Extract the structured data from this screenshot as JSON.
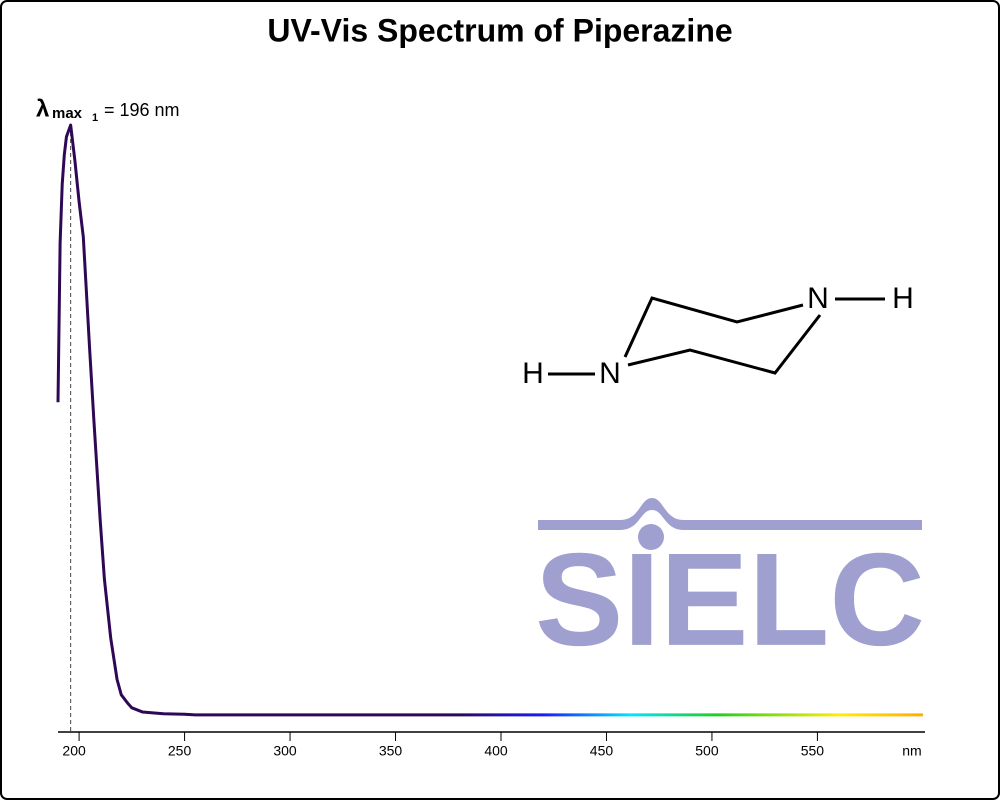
{
  "chart_data": {
    "type": "line",
    "title": "UV-Vis Spectrum of Piperazine",
    "x": [
      190,
      191,
      192,
      193,
      194,
      196,
      198,
      200,
      202,
      205,
      207,
      210,
      212,
      215,
      218,
      220,
      223,
      225,
      230,
      240,
      250,
      255,
      300,
      350,
      400,
      450,
      500,
      550,
      600
    ],
    "values": [
      0.53,
      0.8,
      0.9,
      0.95,
      0.98,
      1.0,
      0.94,
      0.87,
      0.81,
      0.62,
      0.5,
      0.33,
      0.23,
      0.13,
      0.06,
      0.034,
      0.02,
      0.012,
      0.005,
      0.002,
      0.001,
      0,
      0,
      0,
      0,
      0,
      0,
      0,
      0
    ],
    "color": "#2e0854",
    "xlim": [
      190,
      601
    ],
    "ylim": [
      -0.029,
      1.0
    ],
    "xticks": [
      200,
      250,
      300,
      350,
      400,
      450,
      500,
      550
    ],
    "x_label": "nm",
    "annotation": {
      "x": 196,
      "symbol": "λ",
      "subscript": "max",
      "index": "1",
      "text": "= 196 nm"
    },
    "structure": {
      "atoms": [
        "N",
        "H",
        "N",
        "H"
      ]
    },
    "logo": "SIELC"
  }
}
